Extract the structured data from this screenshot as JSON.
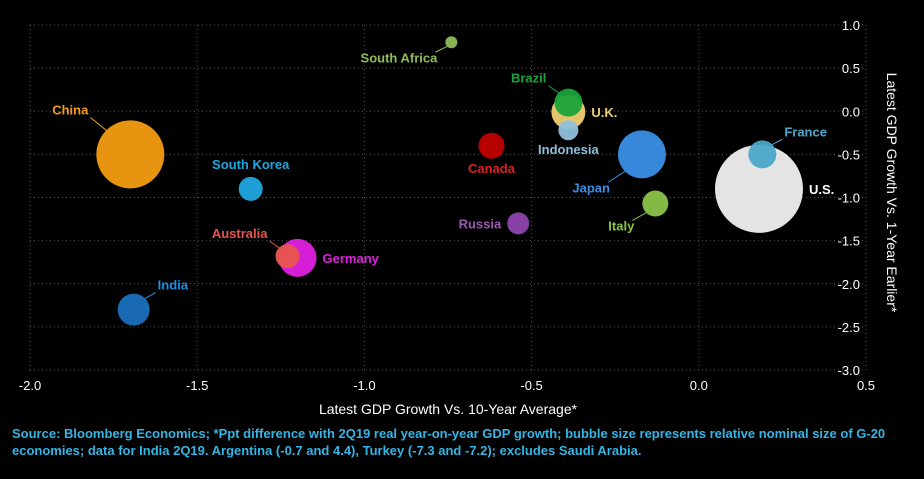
{
  "chart_data": {
    "type": "scatter",
    "xlabel": "Latest GDP Growth Vs. 10-Year Average*",
    "ylabel": "Latest GDP Growth Vs. 1-Year Earlier*",
    "xlim": [
      -2.0,
      0.5
    ],
    "ylim": [
      -3.0,
      1.0
    ],
    "x_ticks": [
      "-2.0",
      "-1.5",
      "-1.0",
      "-0.5",
      "0.0",
      "0.5"
    ],
    "y_ticks": [
      "1.0",
      "0.5",
      "0.0",
      "-0.5",
      "-1.0",
      "-1.5",
      "-2.0",
      "-2.5",
      "-3.0"
    ],
    "grid": "dotted",
    "points": [
      {
        "label": "China",
        "x": -1.7,
        "y": -0.5,
        "size": 34,
        "color": "#f39c12",
        "label_color": "#f39c12",
        "label_pos": "nw"
      },
      {
        "label": "South Korea",
        "x": -1.34,
        "y": -0.9,
        "size": 12,
        "color": "#1fa8e0",
        "label_color": "#1fa8e0",
        "label_pos": "n"
      },
      {
        "label": "India",
        "x": -1.69,
        "y": -2.3,
        "size": 16,
        "color": "#1a6fbd",
        "label_color": "#1a8fe0",
        "label_pos": "ne"
      },
      {
        "label": "Australia",
        "x": -1.23,
        "y": -1.68,
        "size": 12,
        "color": "#e8554e",
        "label_color": "#e8554e",
        "label_pos": "nw"
      },
      {
        "label": "Germany",
        "x": -1.2,
        "y": -1.7,
        "size": 19,
        "color": "#e020e0",
        "label_color": "#e020e0",
        "label_pos": "e"
      },
      {
        "label": "South Africa",
        "x": -0.74,
        "y": 0.8,
        "size": 6,
        "color": "#8fbc5a",
        "label_color": "#8fbc5a",
        "label_pos": "sw"
      },
      {
        "label": "Canada",
        "x": -0.62,
        "y": -0.4,
        "size": 13,
        "color": "#c00000",
        "label_color": "#e02020",
        "label_pos": "s"
      },
      {
        "label": "Russia",
        "x": -0.54,
        "y": -1.3,
        "size": 11,
        "color": "#8e44ad",
        "label_color": "#9b59b6",
        "label_pos": "w"
      },
      {
        "label": "Brazil",
        "x": -0.39,
        "y": 0.1,
        "size": 14,
        "color": "#1aa33a",
        "label_color": "#1aa33a",
        "label_pos": "nw"
      },
      {
        "label": "U.K.",
        "x": -0.39,
        "y": -0.01,
        "size": 17,
        "color": "#f0d070",
        "label_color": "#f0d070",
        "label_pos": "e"
      },
      {
        "label": "Indonesia",
        "x": -0.39,
        "y": -0.22,
        "size": 10,
        "color": "#8ec0dd",
        "label_color": "#8ec0dd",
        "label_pos": "s"
      },
      {
        "label": "Japan",
        "x": -0.17,
        "y": -0.5,
        "size": 24,
        "color": "#3a8ee6",
        "label_color": "#3a8ee6",
        "label_pos": "sw"
      },
      {
        "label": "Italy",
        "x": -0.13,
        "y": -1.07,
        "size": 13,
        "color": "#8bc34a",
        "label_color": "#8bc34a",
        "label_pos": "sw"
      },
      {
        "label": "France",
        "x": 0.19,
        "y": -0.5,
        "size": 14,
        "color": "#4aa8c8",
        "label_color": "#4aa8c8",
        "label_pos": "ne"
      },
      {
        "label": "U.S.",
        "x": 0.18,
        "y": -0.9,
        "size": 44,
        "color": "#f0f0f0",
        "label_color": "#ffffff",
        "label_pos": "e"
      }
    ]
  },
  "source_text": "Source: Bloomberg Economics; *Ppt difference with 2Q19 real year-on-year GDP growth; bubble size represents relative nominal size of G-20 economies; data for India 2Q19. Argentina (-0.7 and 4.4), Turkey (-7.3 and -7.2); excludes Saudi Arabia."
}
